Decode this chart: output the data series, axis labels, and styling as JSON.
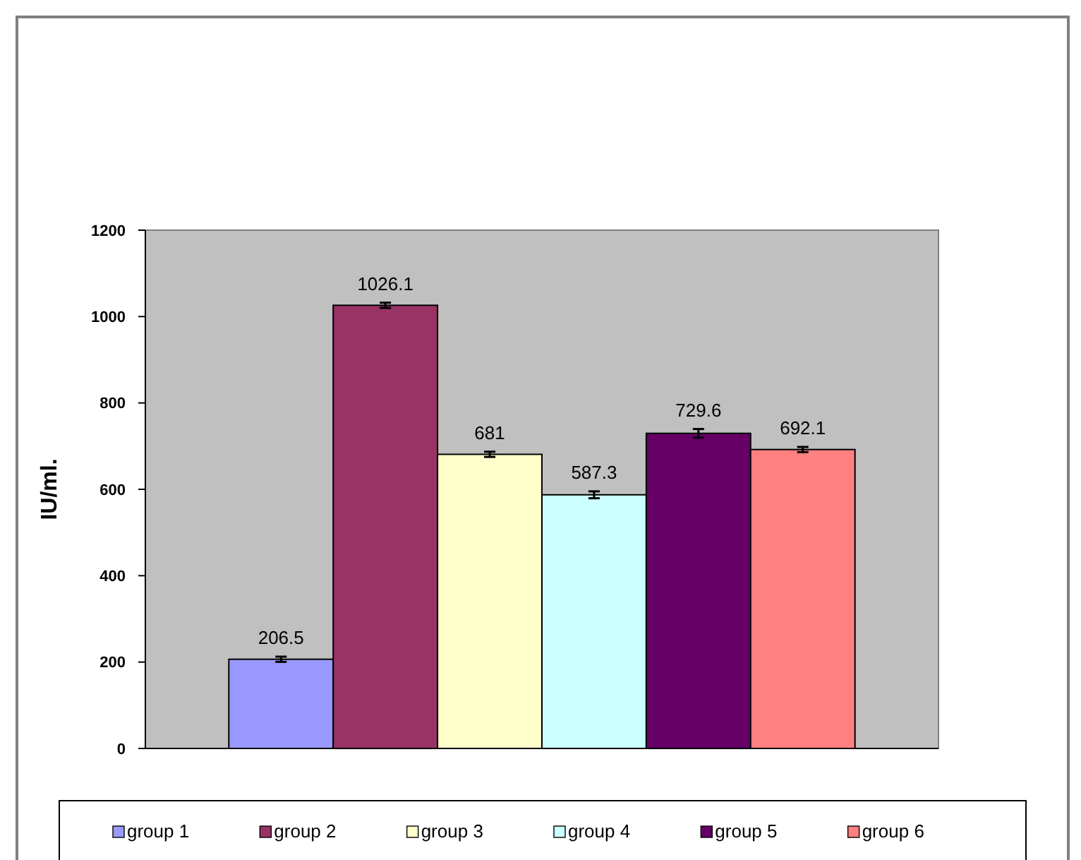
{
  "chart_data": {
    "type": "bar",
    "ylabel": "IU/ml.",
    "categories": [
      null
    ],
    "series": [
      {
        "name": "group 1",
        "color": "#9999ff",
        "values": [
          206.5
        ],
        "errors": [
          6
        ]
      },
      {
        "name": "group 2",
        "color": "#993366",
        "values": [
          1026.1
        ],
        "errors": [
          6
        ]
      },
      {
        "name": "group 3",
        "color": "#ffffcc",
        "values": [
          681
        ],
        "errors": [
          6
        ]
      },
      {
        "name": "group 4",
        "color": "#ccffff",
        "values": [
          587.3
        ],
        "errors": [
          8
        ]
      },
      {
        "name": "group 5",
        "color": "#660066",
        "values": [
          729.6
        ],
        "errors": [
          10
        ]
      },
      {
        "name": "group 6",
        "color": "#ff8080",
        "values": [
          692.1
        ],
        "errors": [
          6
        ]
      }
    ],
    "ylim": [
      0,
      1200
    ],
    "yticks": [
      0,
      200,
      400,
      600,
      800,
      1000,
      1200
    ],
    "data_labels": true,
    "legend": "bottom",
    "grid": false
  }
}
